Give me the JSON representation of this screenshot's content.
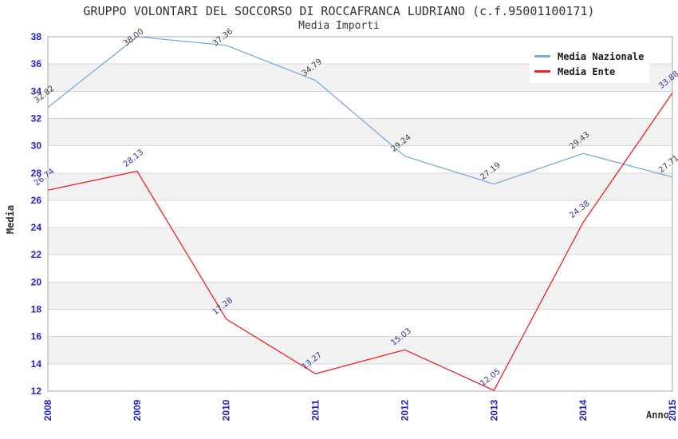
{
  "header": {
    "title": "GRUPPO VOLONTARI DEL SOCCORSO DI ROCCAFRANCA LUDRIANO (c.f.95001100171)",
    "subtitle": "Media Importi"
  },
  "axes": {
    "x_title": "Anno",
    "y_title": "Media"
  },
  "legend": {
    "position": "top-right",
    "items": [
      {
        "label": "Media Nazionale",
        "color": "#76aade"
      },
      {
        "label": "Media Ente",
        "color": "#ee2222"
      }
    ]
  },
  "chart_data": {
    "type": "line",
    "title": "GRUPPO VOLONTARI DEL SOCCORSO DI ROCCAFRANCA LUDRIANO (c.f.95001100171)",
    "subtitle": "Media Importi",
    "xlabel": "Anno",
    "ylabel": "Media",
    "categories": [
      "2008",
      "2009",
      "2010",
      "2011",
      "2012",
      "2013",
      "2014",
      "2015"
    ],
    "series": [
      {
        "name": "Media Nazionale",
        "color": "#76aade",
        "label_color": "#404040",
        "values": [
          32.82,
          38.0,
          37.36,
          34.79,
          29.24,
          27.19,
          29.43,
          27.71
        ],
        "labels": [
          "32.82",
          "38.00",
          "37.36",
          "34.79",
          "29.24",
          "27.19",
          "29.43",
          "27.71"
        ]
      },
      {
        "name": "Media Ente",
        "color": "#ee2222",
        "label_color": "#333399",
        "values": [
          26.74,
          28.13,
          17.28,
          13.27,
          15.03,
          12.05,
          24.38,
          33.88
        ],
        "labels": [
          "26.74",
          "28.13",
          "17.28",
          "13.27",
          "15.03",
          "12.05",
          "24.38",
          "33.88"
        ]
      }
    ],
    "ylim": [
      12,
      38
    ],
    "y_tick_step": 2,
    "y_ticks": [
      12,
      14,
      16,
      18,
      20,
      22,
      24,
      26,
      28,
      30,
      32,
      34,
      36,
      38
    ],
    "grid": "horizontal-bands",
    "band_colors": [
      "#ffffff",
      "#f2f2f2"
    ],
    "gridline_color": "#d8d8d8",
    "border_color": "#a8a8a8",
    "tick_label_color": "#2323cc",
    "legend_position": "top-right"
  }
}
